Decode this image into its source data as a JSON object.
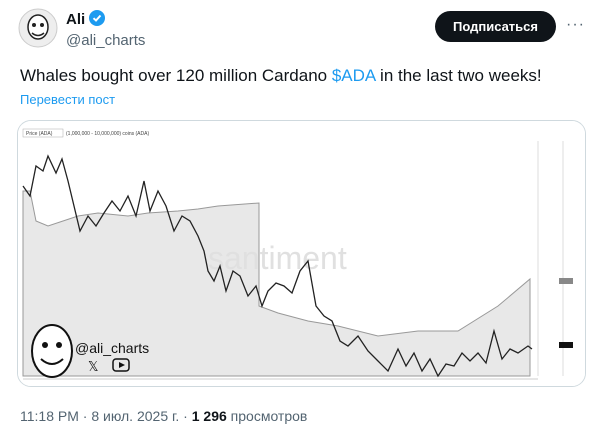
{
  "post": {
    "author": {
      "name": "Ali",
      "handle": "@ali_charts"
    },
    "follow_button": "Подписаться",
    "text": {
      "before": "Whales bought over 120 million Cardano ",
      "cashtag": "$ADA",
      "after": " in the last two weeks!"
    },
    "translate": "Перевести пост",
    "image": {
      "legend_price": "Price (ADA)",
      "legend_holders": "(1,000,000 - 10,000,000) coins (ADA)",
      "watermark": "santiment",
      "signature": "@ali_charts"
    },
    "meta": {
      "time": "11:18 PM · 8 июл. 2025 г. · ",
      "views": "1 296",
      "views_label": " просмотров"
    }
  }
}
